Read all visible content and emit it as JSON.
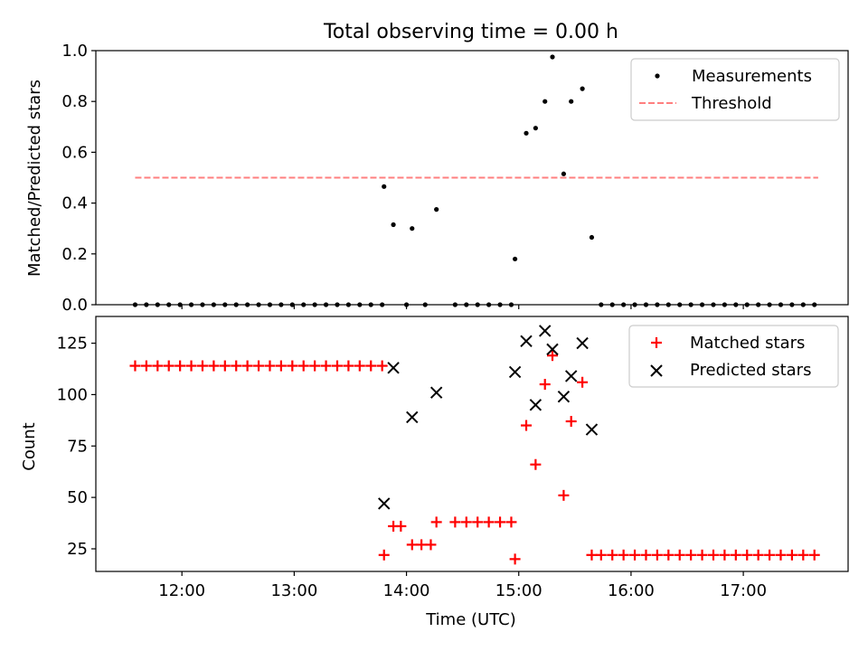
{
  "chart_data": [
    {
      "type": "scatter",
      "title": "Total observing time = 0.00 h",
      "ylabel": "Matched/Predicted stars",
      "xlabel": "",
      "xlim": [
        "11:14",
        "17:56"
      ],
      "ylim": [
        0,
        1.0
      ],
      "yticks": [
        "0.0",
        "0.2",
        "0.4",
        "0.6",
        "0.8",
        "1.0"
      ],
      "legend_position": "top-right",
      "series": [
        {
          "name": "Measurements",
          "marker": "dot",
          "color": "#000000",
          "points": [
            [
              "11:35",
              0
            ],
            [
              "11:41",
              0
            ],
            [
              "11:47",
              0
            ],
            [
              "11:53",
              0
            ],
            [
              "11:59",
              0
            ],
            [
              "12:05",
              0
            ],
            [
              "12:11",
              0
            ],
            [
              "12:17",
              0
            ],
            [
              "12:23",
              0
            ],
            [
              "12:29",
              0
            ],
            [
              "12:35",
              0
            ],
            [
              "12:41",
              0
            ],
            [
              "12:47",
              0
            ],
            [
              "12:53",
              0
            ],
            [
              "12:59",
              0
            ],
            [
              "13:05",
              0
            ],
            [
              "13:11",
              0
            ],
            [
              "13:17",
              0
            ],
            [
              "13:23",
              0
            ],
            [
              "13:29",
              0
            ],
            [
              "13:35",
              0
            ],
            [
              "13:41",
              0
            ],
            [
              "13:47",
              0
            ],
            [
              "13:48",
              0.465
            ],
            [
              "13:53",
              0.315
            ],
            [
              "14:00",
              0
            ],
            [
              "14:03",
              0.3
            ],
            [
              "14:10",
              0
            ],
            [
              "14:16",
              0.375
            ],
            [
              "14:26",
              0
            ],
            [
              "14:32",
              0
            ],
            [
              "14:38",
              0
            ],
            [
              "14:44",
              0
            ],
            [
              "14:50",
              0
            ],
            [
              "14:56",
              0
            ],
            [
              "14:58",
              0.18
            ],
            [
              "15:04",
              0.675
            ],
            [
              "15:09",
              0.695
            ],
            [
              "15:14",
              0.8
            ],
            [
              "15:18",
              0.975
            ],
            [
              "15:24",
              0.515
            ],
            [
              "15:28",
              0.8
            ],
            [
              "15:34",
              0.85
            ],
            [
              "15:39",
              0.265
            ],
            [
              "15:44",
              0
            ],
            [
              "15:50",
              0
            ],
            [
              "15:56",
              0
            ],
            [
              "16:02",
              0
            ],
            [
              "16:08",
              0
            ],
            [
              "16:14",
              0
            ],
            [
              "16:20",
              0
            ],
            [
              "16:26",
              0
            ],
            [
              "16:32",
              0
            ],
            [
              "16:38",
              0
            ],
            [
              "16:44",
              0
            ],
            [
              "16:50",
              0
            ],
            [
              "16:56",
              0
            ],
            [
              "17:02",
              0
            ],
            [
              "17:08",
              0
            ],
            [
              "17:14",
              0
            ],
            [
              "17:20",
              0
            ],
            [
              "17:26",
              0
            ],
            [
              "17:32",
              0
            ],
            [
              "17:38",
              0
            ]
          ]
        },
        {
          "name": "Threshold",
          "marker": "dashed-line",
          "color": "#ff7f7f",
          "points": [
            [
              "11:35",
              0.5
            ],
            [
              "17:40",
              0.5
            ]
          ]
        }
      ]
    },
    {
      "type": "scatter",
      "title": "",
      "xlabel": "Time (UTC)",
      "ylabel": "Count",
      "xlim": [
        "11:14",
        "17:56"
      ],
      "ylim": [
        14,
        138
      ],
      "yticks": [
        "25",
        "50",
        "75",
        "100",
        "125"
      ],
      "xticks": [
        "12:00",
        "13:00",
        "14:00",
        "15:00",
        "16:00",
        "17:00"
      ],
      "legend_position": "top-right",
      "series": [
        {
          "name": "Matched stars",
          "marker": "plus",
          "color": "#ff0000",
          "points": [
            [
              "11:35",
              114
            ],
            [
              "11:41",
              114
            ],
            [
              "11:47",
              114
            ],
            [
              "11:53",
              114
            ],
            [
              "11:59",
              114
            ],
            [
              "12:05",
              114
            ],
            [
              "12:11",
              114
            ],
            [
              "12:17",
              114
            ],
            [
              "12:23",
              114
            ],
            [
              "12:29",
              114
            ],
            [
              "12:35",
              114
            ],
            [
              "12:41",
              114
            ],
            [
              "12:47",
              114
            ],
            [
              "12:53",
              114
            ],
            [
              "12:59",
              114
            ],
            [
              "13:05",
              114
            ],
            [
              "13:11",
              114
            ],
            [
              "13:17",
              114
            ],
            [
              "13:23",
              114
            ],
            [
              "13:29",
              114
            ],
            [
              "13:35",
              114
            ],
            [
              "13:41",
              114
            ],
            [
              "13:47",
              114
            ],
            [
              "13:48",
              22
            ],
            [
              "13:53",
              36
            ],
            [
              "13:57",
              36
            ],
            [
              "14:03",
              27
            ],
            [
              "14:08",
              27
            ],
            [
              "14:13",
              27
            ],
            [
              "14:16",
              38
            ],
            [
              "14:26",
              38
            ],
            [
              "14:32",
              38
            ],
            [
              "14:38",
              38
            ],
            [
              "14:44",
              38
            ],
            [
              "14:50",
              38
            ],
            [
              "14:56",
              38
            ],
            [
              "14:58",
              20
            ],
            [
              "15:04",
              85
            ],
            [
              "15:09",
              66
            ],
            [
              "15:14",
              105
            ],
            [
              "15:18",
              119
            ],
            [
              "15:24",
              51
            ],
            [
              "15:28",
              87
            ],
            [
              "15:34",
              106
            ],
            [
              "15:39",
              22
            ],
            [
              "15:44",
              22
            ],
            [
              "15:50",
              22
            ],
            [
              "15:56",
              22
            ],
            [
              "16:02",
              22
            ],
            [
              "16:08",
              22
            ],
            [
              "16:14",
              22
            ],
            [
              "16:20",
              22
            ],
            [
              "16:26",
              22
            ],
            [
              "16:32",
              22
            ],
            [
              "16:38",
              22
            ],
            [
              "16:44",
              22
            ],
            [
              "16:50",
              22
            ],
            [
              "16:56",
              22
            ],
            [
              "17:02",
              22
            ],
            [
              "17:08",
              22
            ],
            [
              "17:14",
              22
            ],
            [
              "17:20",
              22
            ],
            [
              "17:26",
              22
            ],
            [
              "17:32",
              22
            ],
            [
              "17:38",
              22
            ]
          ]
        },
        {
          "name": "Predicted stars",
          "marker": "x",
          "color": "#000000",
          "points": [
            [
              "13:48",
              47
            ],
            [
              "13:53",
              113
            ],
            [
              "14:03",
              89
            ],
            [
              "14:16",
              101
            ],
            [
              "14:58",
              111
            ],
            [
              "15:04",
              126
            ],
            [
              "15:09",
              95
            ],
            [
              "15:14",
              131
            ],
            [
              "15:18",
              122
            ],
            [
              "15:24",
              99
            ],
            [
              "15:28",
              109
            ],
            [
              "15:34",
              125
            ],
            [
              "15:39",
              83
            ]
          ]
        }
      ]
    }
  ]
}
